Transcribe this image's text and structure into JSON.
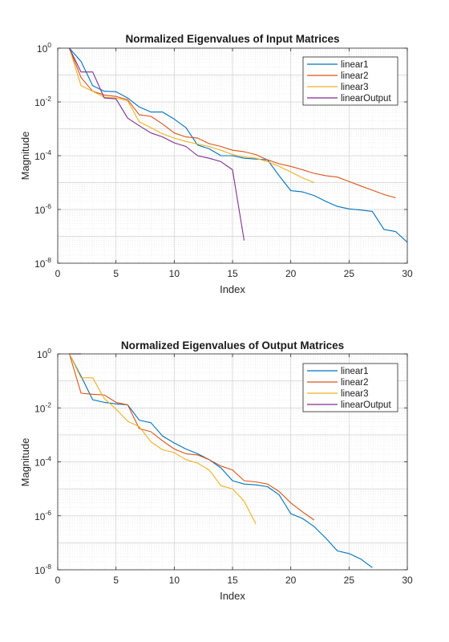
{
  "chart_data": [
    {
      "type": "line",
      "title": "Normalized Eigenvalues of Input Matrices",
      "xlabel": "Index",
      "ylabel": "Magnitude",
      "xlim": [
        0,
        30
      ],
      "ylim": [
        1e-08,
        1
      ],
      "yscale": "log",
      "grid": true,
      "minor_grid": true,
      "legend_position": "top-right",
      "xticks": [
        0,
        5,
        10,
        15,
        20,
        25,
        30
      ],
      "yticks": [
        {
          "base": "10",
          "exp": "0",
          "value": 1
        },
        {
          "base": "10",
          "exp": "-2",
          "value": 0.01
        },
        {
          "base": "10",
          "exp": "-4",
          "value": 0.0001
        },
        {
          "base": "10",
          "exp": "-6",
          "value": 1e-06
        },
        {
          "base": "10",
          "exp": "-8",
          "value": 1e-08
        }
      ],
      "series": [
        {
          "name": "linear1",
          "color": "#0072BD",
          "x": [
            1,
            2,
            3,
            4,
            5,
            6,
            7,
            8,
            9,
            10,
            11,
            12,
            13,
            14,
            15,
            16,
            17,
            18,
            19,
            20,
            21,
            22,
            23,
            24,
            25,
            26,
            27,
            28,
            29,
            30
          ],
          "y": [
            1,
            0.32,
            0.04,
            0.025,
            0.024,
            0.014,
            0.0065,
            0.0042,
            0.0042,
            0.0023,
            0.0011,
            0.00025,
            0.00018,
            0.0001,
            0.0001,
            8e-05,
            7.5e-05,
            7e-05,
            1.8e-05,
            5e-06,
            4.5e-06,
            3.3e-06,
            2e-06,
            1.3e-06,
            1.05e-06,
            9.5e-07,
            8.5e-07,
            1.8e-07,
            1.5e-07,
            6e-08
          ]
        },
        {
          "name": "linear2",
          "color": "#D95319",
          "x": [
            1,
            2,
            3,
            4,
            5,
            6,
            7,
            8,
            9,
            10,
            11,
            12,
            13,
            14,
            15,
            16,
            17,
            18,
            19,
            20,
            21,
            22,
            23,
            24,
            25,
            26,
            27,
            28,
            29
          ],
          "y": [
            1,
            0.08,
            0.025,
            0.018,
            0.016,
            0.012,
            0.0033,
            0.0029,
            0.0015,
            0.0007,
            0.0005,
            0.00045,
            0.00028,
            0.00022,
            0.00016,
            0.00014,
            0.00011,
            7e-05,
            5e-05,
            4e-05,
            3e-05,
            2.2e-05,
            1.8e-05,
            1.6e-05,
            1.1e-05,
            7.5e-06,
            5.2e-06,
            3.6e-06,
            2.7e-06
          ]
        },
        {
          "name": "linear3",
          "color": "#EDB120",
          "x": [
            1,
            2,
            3,
            4,
            5,
            6,
            7,
            8,
            9,
            10,
            11,
            12,
            13,
            14,
            15,
            16,
            17,
            18,
            19,
            20,
            21,
            22
          ],
          "y": [
            1,
            0.04,
            0.025,
            0.015,
            0.014,
            0.011,
            0.0018,
            0.0011,
            0.00065,
            0.00045,
            0.00034,
            0.00027,
            0.00022,
            0.00016,
            0.00011,
            9e-05,
            8e-05,
            6e-05,
            4e-05,
            2.5e-05,
            1.5e-05,
            1e-05
          ]
        },
        {
          "name": "linearOutput",
          "color": "#7E2F8E",
          "x": [
            1,
            2,
            3,
            4,
            5,
            6,
            7,
            8,
            9,
            10,
            11,
            12,
            13,
            14,
            15,
            16
          ],
          "y": [
            1,
            0.13,
            0.13,
            0.014,
            0.013,
            0.0025,
            0.0013,
            0.0007,
            0.0005,
            0.0003,
            0.00022,
            0.0001,
            8e-05,
            6e-05,
            3e-05,
            7e-08
          ]
        }
      ]
    },
    {
      "type": "line",
      "title": "Normalized Eigenvalues of Output Matrices",
      "xlabel": "Index",
      "ylabel": "Magnitude",
      "xlim": [
        0,
        30
      ],
      "ylim": [
        1e-08,
        1
      ],
      "yscale": "log",
      "grid": true,
      "minor_grid": true,
      "legend_position": "top-right",
      "xticks": [
        0,
        5,
        10,
        15,
        20,
        25,
        30
      ],
      "yticks": [
        {
          "base": "10",
          "exp": "0",
          "value": 1
        },
        {
          "base": "10",
          "exp": "-2",
          "value": 0.01
        },
        {
          "base": "10",
          "exp": "-4",
          "value": 0.0001
        },
        {
          "base": "10",
          "exp": "-6",
          "value": 1e-06
        },
        {
          "base": "10",
          "exp": "-8",
          "value": 1e-08
        }
      ],
      "series": [
        {
          "name": "linear1",
          "color": "#0072BD",
          "x": [
            1,
            2,
            3,
            4,
            5,
            6,
            7,
            8,
            9,
            10,
            11,
            12,
            13,
            14,
            15,
            16,
            17,
            18,
            19,
            20,
            21,
            22,
            23,
            24,
            25,
            26,
            27
          ],
          "y": [
            1,
            0.15,
            0.02,
            0.016,
            0.014,
            0.013,
            0.0035,
            0.0028,
            0.0009,
            0.0005,
            0.0003,
            0.0002,
            0.00012,
            6e-05,
            2e-05,
            1.5e-05,
            1.4e-05,
            1.2e-05,
            6e-06,
            1.2e-06,
            8e-07,
            4e-07,
            1.5e-07,
            5e-08,
            4e-08,
            2.5e-08,
            1.2e-08
          ]
        },
        {
          "name": "linear2",
          "color": "#D95319",
          "x": [
            1,
            2,
            3,
            4,
            5,
            6,
            7,
            8,
            9,
            10,
            11,
            12,
            13,
            14,
            15,
            16,
            17,
            18,
            19,
            20,
            21,
            22
          ],
          "y": [
            1,
            0.035,
            0.032,
            0.03,
            0.016,
            0.013,
            0.0017,
            0.0013,
            0.0006,
            0.0003,
            0.0002,
            0.00018,
            0.00012,
            7e-05,
            5e-05,
            2e-05,
            1.8e-05,
            1.5e-05,
            8e-06,
            3e-06,
            1.4e-06,
            7e-07
          ]
        },
        {
          "name": "linear3",
          "color": "#EDB120",
          "x": [
            1,
            2,
            3,
            4,
            5,
            6,
            7,
            8,
            9,
            10,
            11,
            12,
            13,
            14,
            15,
            16,
            17
          ],
          "y": [
            1,
            0.13,
            0.13,
            0.022,
            0.009,
            0.0032,
            0.002,
            0.00055,
            0.00028,
            0.00022,
            0.00012,
            9e-05,
            5e-05,
            1.3e-05,
            1e-05,
            3.5e-06,
            5e-07
          ]
        },
        {
          "name": "linearOutput",
          "color": "#7E2F8E",
          "x": [
            1,
            2
          ],
          "y": [
            1,
            1
          ]
        }
      ]
    }
  ]
}
